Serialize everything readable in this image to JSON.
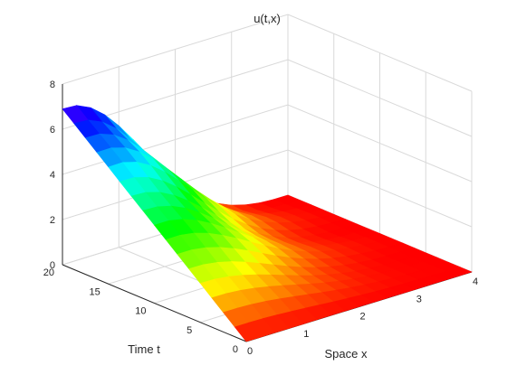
{
  "chart_data": {
    "type": "surface",
    "title": "u(t,x)",
    "xlabel": "Space x",
    "ylabel": "Time t",
    "zlabel": "",
    "xlim": [
      0,
      4
    ],
    "ylim": [
      0,
      20
    ],
    "zlim": [
      0,
      8
    ],
    "x_ticks": [
      "0",
      "1",
      "2",
      "3",
      "4"
    ],
    "y_ticks": [
      "0",
      "5",
      "10",
      "15",
      "20"
    ],
    "z_ticks": [
      "0",
      "2",
      "4",
      "6",
      "8"
    ],
    "grid": true,
    "colormap": "hsv",
    "x": [
      0,
      0.25,
      0.5,
      0.75,
      1,
      1.25,
      1.5,
      1.75,
      2,
      2.25,
      2.5,
      2.75,
      3,
      3.25,
      3.5,
      3.75,
      4
    ],
    "t": [
      0,
      1.25,
      2.5,
      3.75,
      5,
      6.25,
      7.5,
      8.75,
      10,
      11.25,
      12.5,
      13.75,
      15,
      16.25,
      17.5,
      18.75,
      20
    ],
    "u_description": "u rises with t, peaking near 7.8 at x about 0.7 when t = 20, and decays toward 0 as x approaches 4; u is about 0 at t = 0 and along x = 4"
  }
}
